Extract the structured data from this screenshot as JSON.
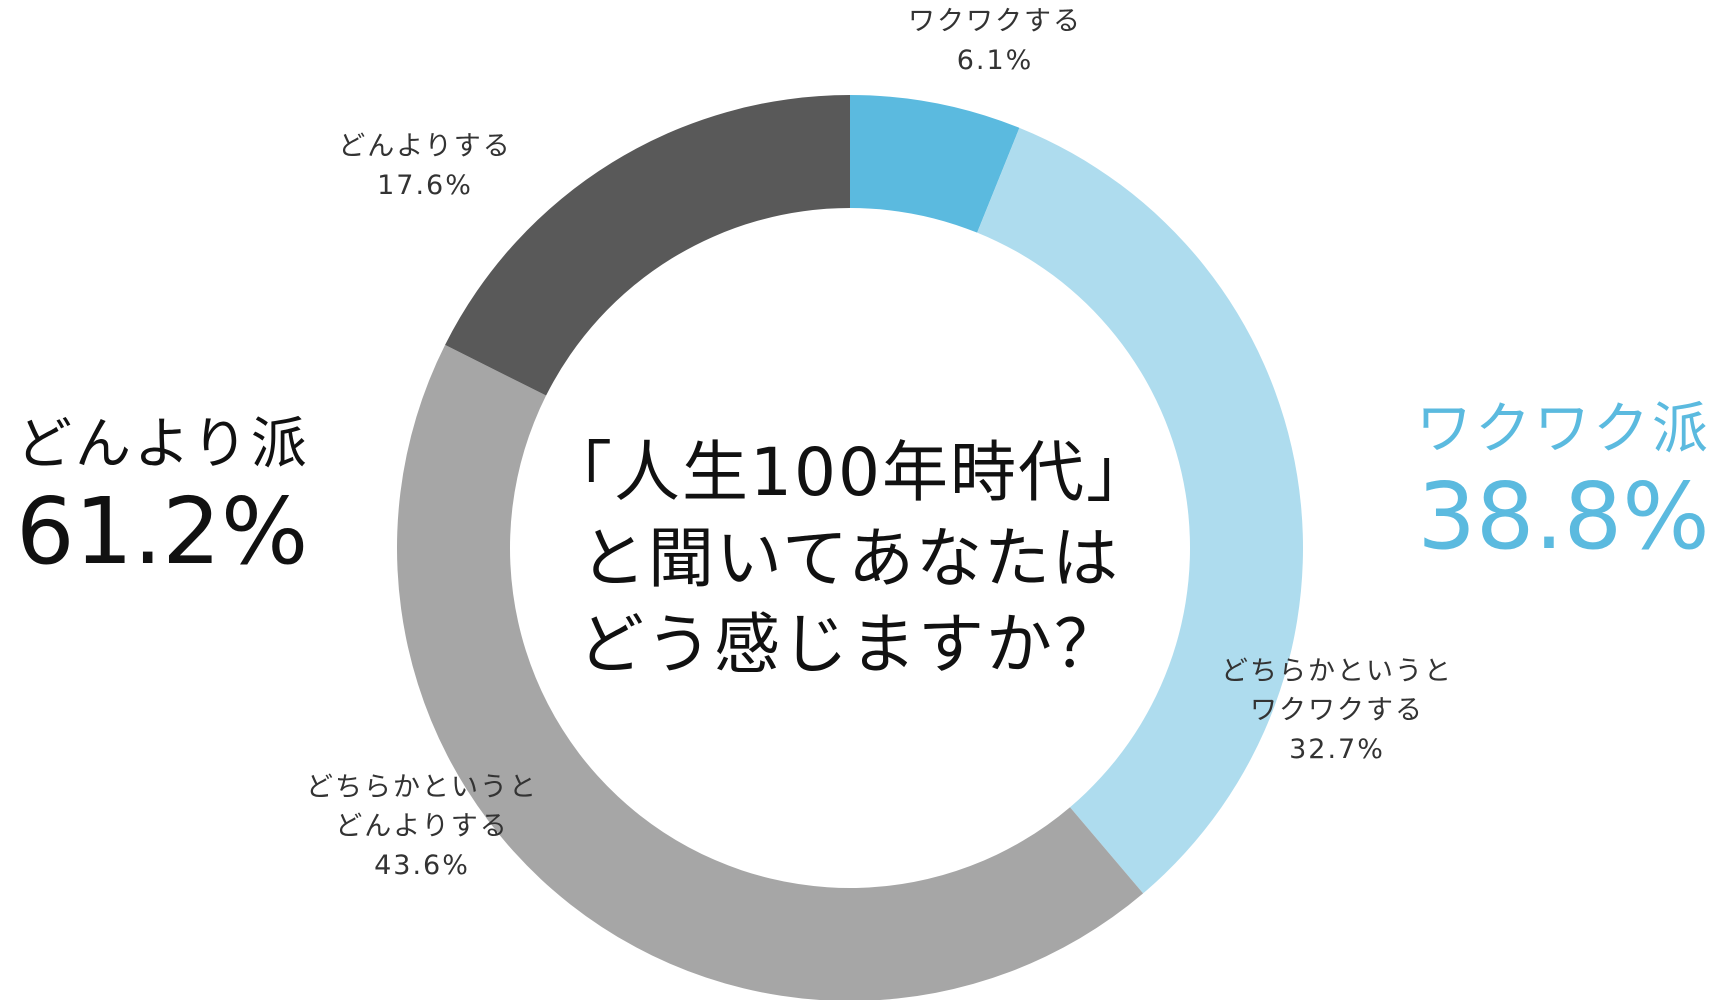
{
  "chart_data": {
    "type": "donut",
    "center_text": "「人生100年時代」\nと聞いてあなたは\nどう感じますか？",
    "categories": [
      "ワクワクする",
      "どちらかというと\nワクワクする",
      "どちらかというと\nどんよりする",
      "どんよりする"
    ],
    "values": [
      6.1,
      32.7,
      43.6,
      17.6
    ],
    "value_labels": [
      "6.1%",
      "32.7%",
      "43.6%",
      "17.6%"
    ],
    "colors": [
      "#5bbadf",
      "#aedcee",
      "#a6a6a6",
      "#595959"
    ],
    "groups": [
      {
        "name": "どんより派",
        "value": 61.2,
        "value_label": "61.2%",
        "color": "#111111"
      },
      {
        "name": "ワクワク派",
        "value": 38.8,
        "value_label": "38.8%",
        "color": "#5bbadf"
      }
    ]
  }
}
